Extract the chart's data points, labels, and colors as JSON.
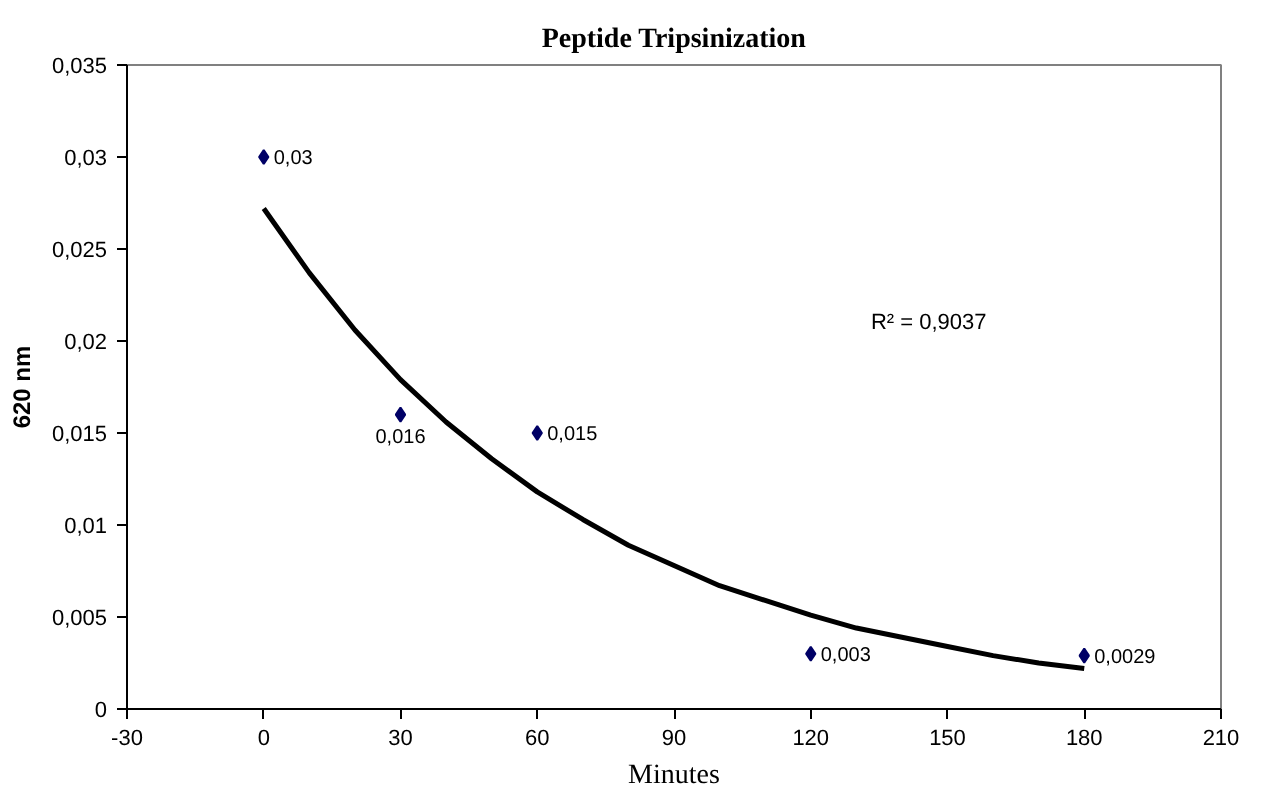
{
  "chart_data": {
    "type": "scatter",
    "title": "Peptide Tripsinization",
    "xlabel": "Minutes",
    "ylabel": "620 nm",
    "xlim": [
      -30,
      210
    ],
    "xticks": [
      -30,
      0,
      30,
      60,
      90,
      120,
      150,
      180,
      210
    ],
    "ylim": [
      0,
      0.035
    ],
    "yticks": [
      0,
      {
        "value": 0.005,
        "label": "0,005"
      },
      {
        "value": 0.01,
        "label": "0,01"
      },
      {
        "value": 0.015,
        "label": "0,015"
      },
      {
        "value": 0.02,
        "label": "0,02"
      },
      {
        "value": 0.025,
        "label": "0,025"
      },
      {
        "value": 0.03,
        "label": "0,03"
      },
      {
        "value": 0.035,
        "label": "0,035"
      }
    ],
    "series": [
      {
        "color": "#000066",
        "marker": "diamond",
        "x": [
          0,
          30,
          60,
          120,
          180
        ],
        "values": [
          0.03,
          0.016,
          0.015,
          0.003,
          0.0029
        ],
        "value_labels": [
          "0,03",
          "0,016",
          "0,015",
          "0,003",
          "0,0029"
        ]
      },
      {
        "type": "line",
        "color": "#000000",
        "line_style": "solid",
        "x": [
          0,
          10,
          20,
          30,
          40,
          50,
          60,
          70,
          80,
          90,
          100,
          110,
          120,
          130,
          140,
          150,
          160,
          170,
          180
        ],
        "values": [
          0.0272,
          0.0237,
          0.0206,
          0.0179,
          0.0156,
          0.0136,
          0.0118,
          0.0103,
          0.0089,
          0.0078,
          0.0067,
          0.0059,
          0.0051,
          0.0044,
          0.0039,
          0.0034,
          0.0029,
          0.0025,
          0.0022
        ]
      }
    ],
    "annotations": [
      "R² = 0,9037"
    ]
  }
}
